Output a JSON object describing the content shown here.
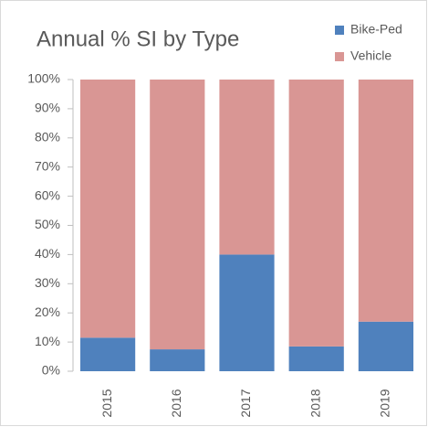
{
  "chart_data": {
    "type": "stacked_bar",
    "title": "Annual % SI by Type",
    "categories": [
      "2015",
      "2016",
      "2017",
      "2018",
      "2019"
    ],
    "series": [
      {
        "name": "Bike-Ped",
        "color": "#4f81bd",
        "values": [
          11.5,
          7.5,
          40,
          8.5,
          17
        ]
      },
      {
        "name": "Vehicle",
        "color": "#d99694",
        "values": [
          88.5,
          92.5,
          60,
          91.5,
          83
        ]
      }
    ],
    "ylim": [
      0,
      100
    ],
    "yticks": [
      {
        "value": 0,
        "label": "0%"
      },
      {
        "value": 10,
        "label": "10%"
      },
      {
        "value": 20,
        "label": "20%"
      },
      {
        "value": 30,
        "label": "30%"
      },
      {
        "value": 40,
        "label": "40%"
      },
      {
        "value": 50,
        "label": "50%"
      },
      {
        "value": 60,
        "label": "60%"
      },
      {
        "value": 70,
        "label": "70%"
      },
      {
        "value": 80,
        "label": "80%"
      },
      {
        "value": 90,
        "label": "90%"
      },
      {
        "value": 100,
        "label": "100%"
      }
    ],
    "legend": "top-right"
  }
}
